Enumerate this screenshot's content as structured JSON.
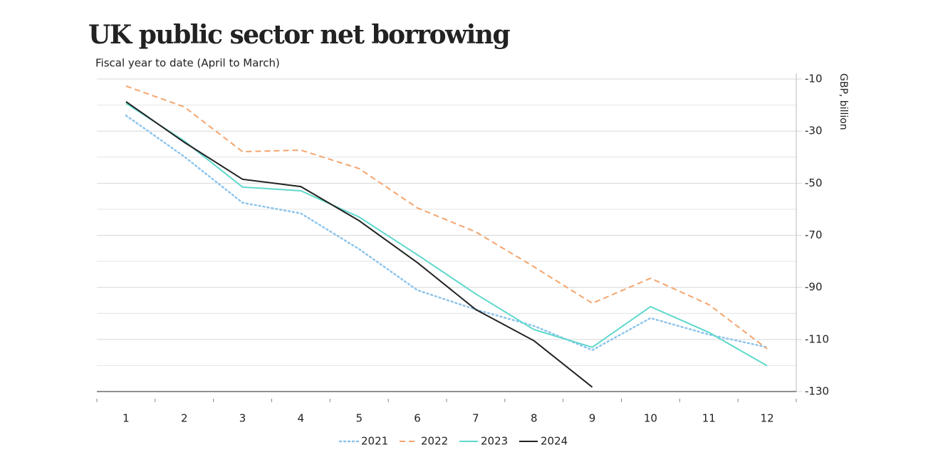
{
  "chart_data": {
    "type": "line",
    "title": "UK public sector net borrowing",
    "subtitle": "Fiscal year to date (April to March)",
    "y_axis_label": "GBP, billion",
    "x": [
      1,
      2,
      3,
      4,
      5,
      6,
      7,
      8,
      9,
      10,
      11,
      12
    ],
    "xlim": [
      0.5,
      12.5
    ],
    "xticks": [
      1,
      2,
      3,
      4,
      5,
      6,
      7,
      8,
      9,
      10,
      11,
      12
    ],
    "ylim": [
      -130,
      -10
    ],
    "yticks": [
      -10,
      -30,
      -50,
      -70,
      -90,
      -110,
      -130
    ],
    "minor_yticks": [
      -20,
      -40,
      -60,
      -80,
      -100,
      -120
    ],
    "grid": true,
    "y_axis_side": "right",
    "legend": "bottom",
    "series": [
      {
        "name": "2021",
        "color": "#8cc4ec",
        "style": "dotted",
        "values": [
          -24,
          -39.8,
          -57.5,
          -61.6,
          -75.3,
          -91.1,
          -98.5,
          -104.8,
          -114.1,
          -101.8,
          -108.1,
          -113
        ]
      },
      {
        "name": "2022",
        "color": "#f4a46c",
        "style": "dashed",
        "values": [
          -12.7,
          -20.7,
          -37.9,
          -37.3,
          -44.4,
          -59.5,
          -68.7,
          -82.1,
          -96.1,
          -86.5,
          -96.6,
          -113.6
        ]
      },
      {
        "name": "2023",
        "color": "#5ed8cc",
        "style": "solid",
        "values": [
          -19.3,
          -33.8,
          -51.5,
          -52.9,
          -63,
          -77.5,
          -92.5,
          -106.2,
          -113,
          -97.4,
          -107.3,
          -120.1
        ]
      },
      {
        "name": "2024",
        "color": "#222222",
        "style": "solid",
        "values": [
          -18.7,
          -34.3,
          -48.5,
          -51.3,
          -64.4,
          -80.5,
          -98.5,
          -110.5,
          -128.3,
          null,
          null,
          null
        ]
      }
    ]
  }
}
